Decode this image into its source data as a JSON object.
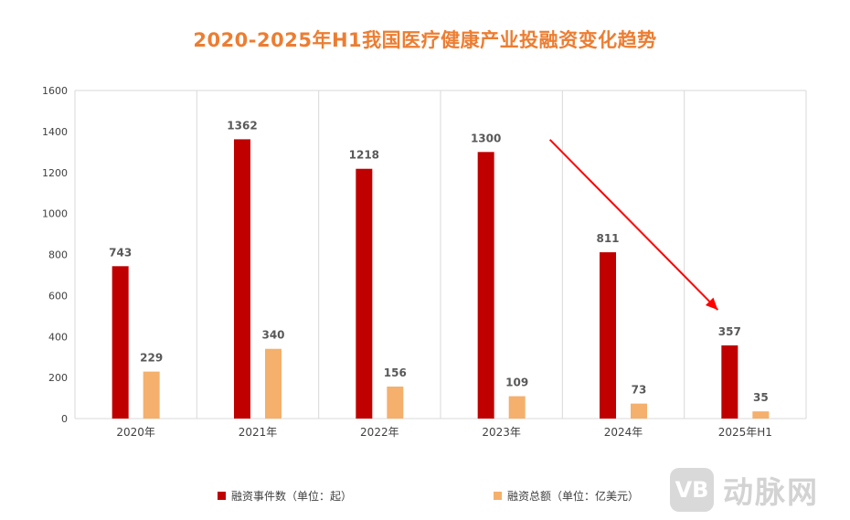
{
  "chart_data": {
    "type": "bar",
    "title": "2020-2025年H1我国医疗健康产业投融资变化趋势",
    "categories": [
      "2020年",
      "2021年",
      "2022年",
      "2023年",
      "2024年",
      "2025年H1"
    ],
    "series": [
      {
        "name": "融资事件数（单位：起）",
        "values": [
          743,
          1362,
          1218,
          1300,
          811,
          357
        ],
        "color": "#c00000"
      },
      {
        "name": "融资总额（单位：亿美元）",
        "values": [
          229,
          340,
          156,
          109,
          73,
          35
        ],
        "color": "#f4b06c"
      }
    ],
    "ylim": [
      0,
      1600
    ],
    "yticks": [
      0,
      200,
      400,
      600,
      800,
      1000,
      1200,
      1400,
      1600
    ],
    "xlabel": "",
    "ylabel": "",
    "grid": true,
    "legend": "bottom",
    "annotations": [
      {
        "type": "arrow",
        "from_category": "2023年",
        "to_category": "2025年H1",
        "from_value": 1360,
        "to_value": 530,
        "color": "#ff0000"
      }
    ]
  },
  "colors": {
    "title": "#ed7d31",
    "label": "#595959",
    "axis_text": "#404040",
    "grid": "#d9d9d9"
  },
  "watermark": {
    "logo_text": "VB",
    "text": "动脉网"
  }
}
